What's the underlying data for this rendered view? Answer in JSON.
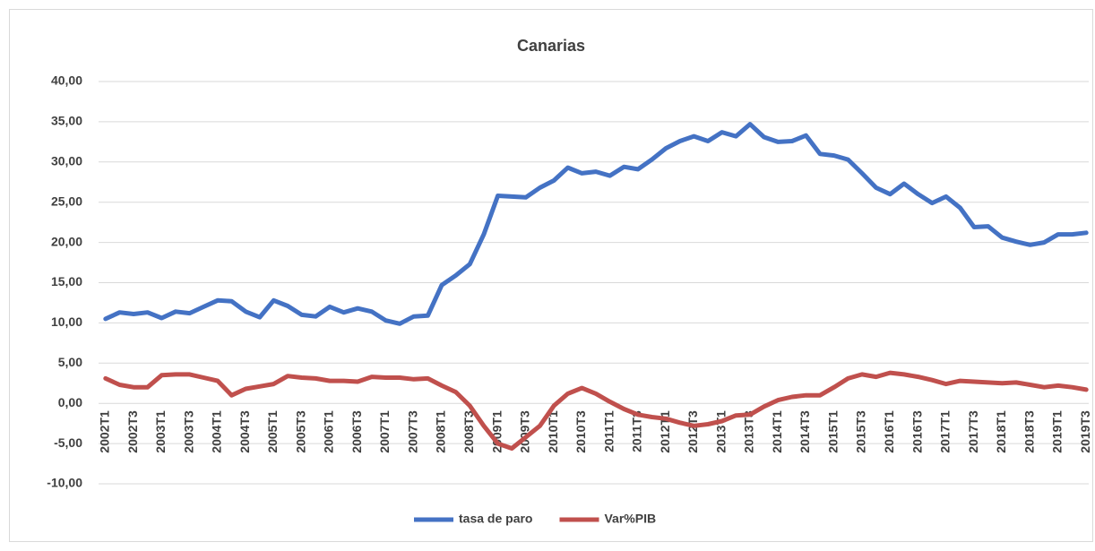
{
  "chart_data": {
    "type": "line",
    "title": "Canarias",
    "categories": [
      "2002T1",
      null,
      "2002T3",
      null,
      "2003T1",
      null,
      "2003T3",
      null,
      "2004T1",
      null,
      "2004T3",
      null,
      "2005T1",
      null,
      "2005T3",
      null,
      "2006T1",
      null,
      "2006T3",
      null,
      "2007T1",
      null,
      "2007T3",
      null,
      "2008T1",
      null,
      "2008T3",
      null,
      "2009T1",
      null,
      "2009T3",
      null,
      "2010T1",
      null,
      "2010T3",
      null,
      "2011T1",
      null,
      "2011T3",
      null,
      "2012T1",
      null,
      "2012T3",
      null,
      "2013T1",
      null,
      "2013T3",
      null,
      "2014T1",
      null,
      "2014T3",
      null,
      "2015T1",
      null,
      "2015T3",
      null,
      "2016T1",
      null,
      "2016T3",
      null,
      "2017T1",
      null,
      "2017T3",
      null,
      "2018T1",
      null,
      "2018T3",
      null,
      "2019T1",
      null,
      "2019T3"
    ],
    "series": [
      {
        "name": "tasa de paro",
        "color": "#4472c4",
        "values": [
          10.5,
          11.3,
          11.1,
          11.3,
          10.6,
          11.4,
          11.2,
          12.0,
          12.8,
          12.7,
          11.4,
          10.7,
          12.8,
          12.1,
          11.0,
          10.8,
          12.0,
          11.3,
          11.8,
          11.4,
          10.3,
          9.9,
          10.8,
          10.9,
          14.7,
          15.9,
          17.3,
          21.0,
          25.8,
          25.7,
          25.6,
          26.8,
          27.7,
          29.3,
          28.6,
          28.8,
          28.3,
          29.4,
          29.1,
          30.3,
          31.7,
          32.6,
          33.2,
          32.6,
          33.7,
          33.2,
          34.7,
          33.1,
          32.5,
          32.6,
          33.3,
          31.0,
          30.8,
          30.3,
          28.6,
          26.8,
          26.0,
          27.3,
          26.0,
          24.9,
          25.7,
          24.3,
          21.9,
          22.0,
          20.6,
          20.1,
          19.7,
          20.0,
          21.0,
          21.0,
          21.2
        ]
      },
      {
        "name": "Var%PIB",
        "color": "#c0504d",
        "values": [
          3.1,
          2.3,
          2.0,
          2.0,
          3.5,
          3.6,
          3.6,
          3.2,
          2.8,
          1.0,
          1.8,
          2.1,
          2.4,
          3.4,
          3.2,
          3.1,
          2.8,
          2.8,
          2.7,
          3.3,
          3.2,
          3.2,
          3.0,
          3.1,
          2.2,
          1.4,
          -0.3,
          -2.8,
          -5.0,
          -5.6,
          -4.2,
          -2.8,
          -0.3,
          1.2,
          1.9,
          1.2,
          0.2,
          -0.7,
          -1.4,
          -1.7,
          -1.9,
          -2.4,
          -2.8,
          -2.6,
          -2.2,
          -1.5,
          -1.4,
          -0.4,
          0.4,
          0.8,
          1.0,
          1.0,
          2.0,
          3.1,
          3.6,
          3.3,
          3.8,
          3.6,
          3.3,
          2.9,
          2.4,
          2.8,
          2.7,
          2.6,
          2.5,
          2.6,
          2.3,
          2.0,
          2.2,
          2.0,
          1.7
        ]
      }
    ],
    "ylim": [
      -10,
      40
    ],
    "yticks": [
      {
        "value": -10,
        "label": "-10,00"
      },
      {
        "value": -5,
        "label": "-5,00"
      },
      {
        "value": 0,
        "label": "0,00"
      },
      {
        "value": 5,
        "label": "5,00"
      },
      {
        "value": 10,
        "label": "10,00"
      },
      {
        "value": 15,
        "label": "15,00"
      },
      {
        "value": 20,
        "label": "20,00"
      },
      {
        "value": 25,
        "label": "25,00"
      },
      {
        "value": 30,
        "label": "30,00"
      },
      {
        "value": 35,
        "label": "35,00"
      },
      {
        "value": 40,
        "label": "40,00"
      }
    ],
    "grid": true,
    "legend": "bottom"
  }
}
